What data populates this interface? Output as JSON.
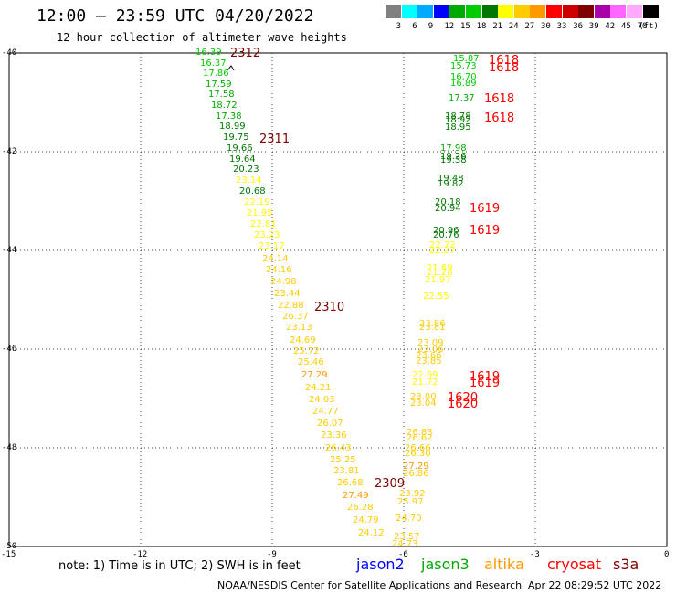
{
  "header": {
    "title": "12:00 — 23:59 UTC 04/20/2022",
    "subtitle": "12 hour collection of altimeter wave heights"
  },
  "colorbar": {
    "colors": [
      "#808080",
      "#00ffff",
      "#00aaff",
      "#0000ff",
      "#00aa00",
      "#00cc00",
      "#007700",
      "#ffff00",
      "#ffcc00",
      "#ff9900",
      "#ff0000",
      "#cc0000",
      "#7f0000",
      "#aa00aa",
      "#ff66ff",
      "#ffaaff",
      "#000000"
    ],
    "labels": [
      "3",
      "6",
      "9",
      "12",
      "15",
      "18",
      "21",
      "24",
      "27",
      "30",
      "33",
      "36",
      "39",
      "42",
      "45",
      "70"
    ],
    "unit": "(ft)"
  },
  "map": {
    "lon_range": [
      -15,
      0
    ],
    "lat_range": [
      -50,
      -40
    ],
    "lon_ticks": [
      "-15",
      "-12",
      "-9",
      "-6",
      "-3",
      "0"
    ],
    "lat_ticks": [
      "-40",
      "-42",
      "-44",
      "-46",
      "-48",
      "-50"
    ],
    "tracks": [
      {
        "name": "track-a",
        "values": [
          {
            "v": "16.39",
            "c": "#00cc00"
          },
          {
            "v": "16.37",
            "c": "#00cc00"
          },
          {
            "v": "17.86",
            "c": "#00cc00"
          },
          {
            "v": "17.59",
            "c": "#00aa00"
          },
          {
            "v": "17.58",
            "c": "#00aa00"
          },
          {
            "v": "18.72",
            "c": "#00aa00"
          },
          {
            "v": "17.38",
            "c": "#00aa00"
          },
          {
            "v": "18.99",
            "c": "#007700"
          },
          {
            "v": "19.75",
            "c": "#007700"
          },
          {
            "v": "19.66",
            "c": "#007700"
          },
          {
            "v": "19.64",
            "c": "#007700"
          },
          {
            "v": "20.23",
            "c": "#007700"
          },
          {
            "v": "23.14",
            "c": "#ffff00"
          },
          {
            "v": "20.68",
            "c": "#007700"
          },
          {
            "v": "22.19",
            "c": "#ffff00"
          },
          {
            "v": "21.95",
            "c": "#ffff00"
          },
          {
            "v": "22.81",
            "c": "#ffff00"
          },
          {
            "v": "23.23",
            "c": "#ffff00"
          },
          {
            "v": "23.17",
            "c": "#ffff00"
          },
          {
            "v": "24.14",
            "c": "#ffcc00"
          },
          {
            "v": "24.16",
            "c": "#ffcc00"
          },
          {
            "v": "24.98",
            "c": "#ffcc00"
          },
          {
            "v": "23.44",
            "c": "#ffcc00"
          },
          {
            "v": "22.88",
            "c": "#ffcc00"
          },
          {
            "v": "26.37",
            "c": "#ffcc00"
          },
          {
            "v": "23.13",
            "c": "#ffcc00"
          },
          {
            "v": "24.69",
            "c": "#ffcc00"
          },
          {
            "v": "25.72",
            "c": "#ffcc00"
          },
          {
            "v": "25.46",
            "c": "#ffcc00"
          },
          {
            "v": "27.29",
            "c": "#ff9900"
          },
          {
            "v": "24.21",
            "c": "#ffcc00"
          },
          {
            "v": "24.03",
            "c": "#ffcc00"
          },
          {
            "v": "24.77",
            "c": "#ffcc00"
          },
          {
            "v": "26.07",
            "c": "#ffcc00"
          },
          {
            "v": "23.36",
            "c": "#ffcc00"
          },
          {
            "v": "26.43",
            "c": "#ffcc00"
          },
          {
            "v": "25.25",
            "c": "#ffcc00"
          },
          {
            "v": "23.81",
            "c": "#ffcc00"
          },
          {
            "v": "26.68",
            "c": "#ffcc00"
          },
          {
            "v": "27.49",
            "c": "#ff9900"
          },
          {
            "v": "26.28",
            "c": "#ffcc00"
          },
          {
            "v": "24.79",
            "c": "#ffcc00"
          },
          {
            "v": "24.12",
            "c": "#ffcc00"
          }
        ],
        "times": [
          {
            "t": "2312",
            "c": "#7f0000"
          },
          {
            "t": "2311",
            "c": "#7f0000"
          },
          {
            "t": "2310",
            "c": "#7f0000"
          },
          {
            "t": "2309",
            "c": "#7f0000"
          }
        ]
      },
      {
        "name": "track-b",
        "values": [
          {
            "v": "15.87",
            "c": "#00cc00"
          },
          {
            "v": "15.73",
            "c": "#00cc00"
          },
          {
            "v": "16.70",
            "c": "#00cc00"
          },
          {
            "v": "16.89",
            "c": "#00cc00"
          },
          {
            "v": "17.37",
            "c": "#00aa00"
          },
          {
            "v": "18.78",
            "c": "#007700"
          },
          {
            "v": "18.92",
            "c": "#007700"
          },
          {
            "v": "18.95",
            "c": "#007700"
          },
          {
            "v": "17.98",
            "c": "#00aa00"
          },
          {
            "v": "19.26",
            "c": "#007700"
          },
          {
            "v": "19.38",
            "c": "#007700"
          },
          {
            "v": "19.48",
            "c": "#007700"
          },
          {
            "v": "19.82",
            "c": "#007700"
          },
          {
            "v": "20.18",
            "c": "#007700"
          },
          {
            "v": "20.94",
            "c": "#007700"
          },
          {
            "v": "20.96",
            "c": "#007700"
          },
          {
            "v": "20.76",
            "c": "#007700"
          },
          {
            "v": "22.72",
            "c": "#ffff00"
          },
          {
            "v": "22.27",
            "c": "#ffff00"
          },
          {
            "v": "21.69",
            "c": "#ffff00"
          },
          {
            "v": "21.28",
            "c": "#ffff00"
          },
          {
            "v": "21.97",
            "c": "#ffff00"
          },
          {
            "v": "22.55",
            "c": "#ffff00"
          },
          {
            "v": "23.86",
            "c": "#ffcc00"
          },
          {
            "v": "23.81",
            "c": "#ffcc00"
          },
          {
            "v": "23.09",
            "c": "#ffcc00"
          },
          {
            "v": "23.06",
            "c": "#ffcc00"
          },
          {
            "v": "23.66",
            "c": "#ffcc00"
          },
          {
            "v": "23.85",
            "c": "#ffcc00"
          },
          {
            "v": "22.99",
            "c": "#ffff00"
          },
          {
            "v": "21.72",
            "c": "#ffff00"
          },
          {
            "v": "23.00",
            "c": "#ffcc00"
          },
          {
            "v": "23.04",
            "c": "#ffcc00"
          },
          {
            "v": "26.83",
            "c": "#ffcc00"
          },
          {
            "v": "26.62",
            "c": "#ffcc00"
          },
          {
            "v": "26.66",
            "c": "#ffcc00"
          },
          {
            "v": "26.30",
            "c": "#ffcc00"
          },
          {
            "v": "27.29",
            "c": "#ff9900"
          },
          {
            "v": "26.86",
            "c": "#ffcc00"
          },
          {
            "v": "23.92",
            "c": "#ffcc00"
          },
          {
            "v": "25.97",
            "c": "#ffcc00"
          },
          {
            "v": "24.70",
            "c": "#ffcc00"
          },
          {
            "v": "23.57",
            "c": "#ffcc00"
          },
          {
            "v": "24.73",
            "c": "#ffcc00"
          }
        ],
        "times": [
          {
            "t": "1618",
            "c": "#ff0000"
          },
          {
            "t": "1618",
            "c": "#ff0000"
          },
          {
            "t": "1618",
            "c": "#ff0000"
          },
          {
            "t": "1618",
            "c": "#ff0000"
          },
          {
            "t": "1619",
            "c": "#ff0000"
          },
          {
            "t": "1619",
            "c": "#ff0000"
          },
          {
            "t": "1619",
            "c": "#ff0000"
          },
          {
            "t": "1619",
            "c": "#ff0000"
          },
          {
            "t": "1620",
            "c": "#ff0000"
          },
          {
            "t": "1620",
            "c": "#ff0000"
          }
        ]
      }
    ]
  },
  "footer": {
    "note": "note: 1) Time is in UTC; 2) SWH is in feet",
    "satellites": [
      {
        "label": "jason2",
        "color": "#0000ff"
      },
      {
        "label": "jason3",
        "color": "#00aa00"
      },
      {
        "label": "altika",
        "color": "#ff9900"
      },
      {
        "label": "cryosat",
        "color": "#ff0000"
      },
      {
        "label": "s3a",
        "color": "#7f0000"
      }
    ],
    "credit": "NOAA/NESDIS Center for Satellite Applications and Research",
    "timestamp": "Apr 22 08:29:52 UTC 2022"
  }
}
